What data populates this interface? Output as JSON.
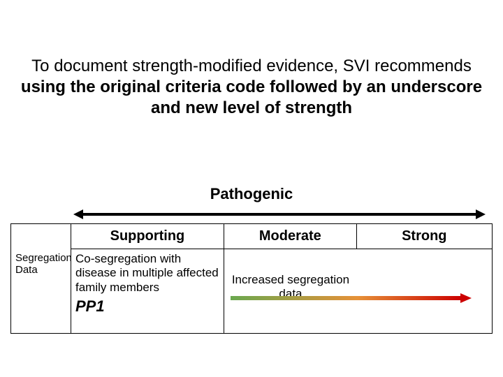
{
  "intro": {
    "part1": "To document strength-modified evidence, SVI recommends ",
    "bold": "using the original criteria code followed by an underscore and new level of strength"
  },
  "section_title": "Pathogenic",
  "columns": {
    "c0": "",
    "c1": "Supporting",
    "c2": "Moderate",
    "c3": "Strong"
  },
  "row": {
    "label": "Segregation Data",
    "c1_text": "Co-segregation with disease in multiple affected family members",
    "c1_tag": "PP1",
    "c2_text": "Increased segregation data"
  },
  "styling": {
    "arrow_color": "#000000",
    "gradient_start": "#6aa84f",
    "gradient_mid": "#e69138",
    "gradient_end": "#cc0000",
    "grad_arrow_head": "#cc0000",
    "font_family": "Arial",
    "title_fontsize": 24,
    "header_fontsize": 20,
    "cell_fontsize": 17
  }
}
